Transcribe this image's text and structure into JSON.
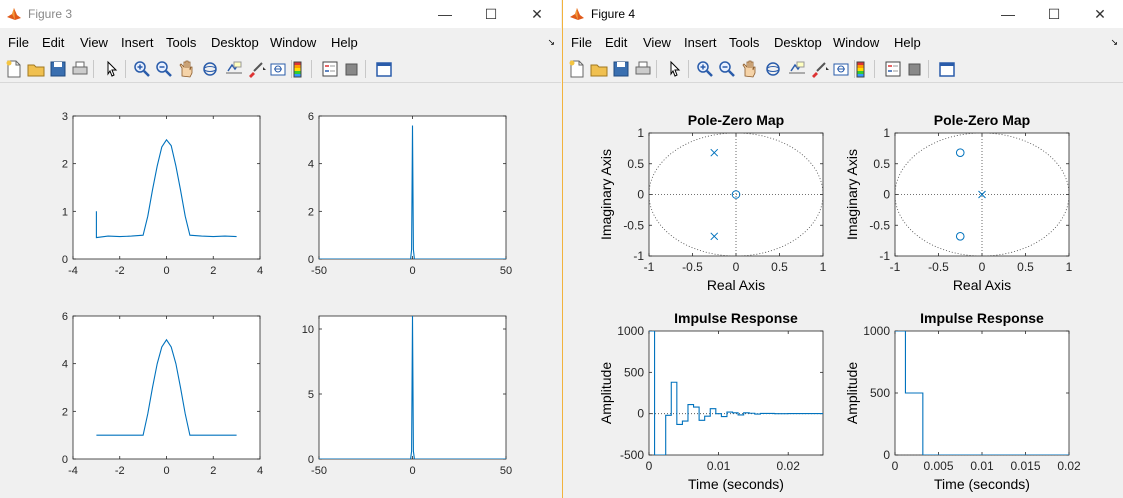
{
  "fig3": {
    "title": "Figure 3",
    "menu": [
      "File",
      "Edit",
      "View",
      "Insert",
      "Tools",
      "Desktop",
      "Window",
      "Help"
    ],
    "controls": {
      "minimize": "—",
      "maximize": "☐",
      "close": "✕"
    }
  },
  "fig4": {
    "title": "Figure 4",
    "menu": [
      "File",
      "Edit",
      "View",
      "Insert",
      "Tools",
      "Desktop",
      "Window",
      "Help"
    ],
    "controls": {
      "minimize": "—",
      "maximize": "☐",
      "close": "✕"
    }
  },
  "toolbar_icons": [
    "new-figure-icon",
    "open-icon",
    "save-icon",
    "print-icon",
    "pointer-icon",
    "zoom-in-icon",
    "zoom-out-icon",
    "pan-icon",
    "rotate-3d-icon",
    "data-cursor-icon",
    "brush-icon",
    "link-plot-icon",
    "colorbar-icon",
    "legend-icon",
    "hide-plot-tools-icon",
    "show-plot-tools-icon"
  ],
  "colors": {
    "line": "#0072bd",
    "axes": "#262626",
    "grid": "#262626",
    "accent": "#f2b33d"
  },
  "chart_data": [
    {
      "id": "fig3-top-left",
      "type": "line",
      "xlim": [
        -4,
        4
      ],
      "ylim": [
        0,
        3
      ],
      "xticks": [
        "-4",
        "-2",
        "0",
        "2",
        "4"
      ],
      "yticks": [
        "0",
        "1",
        "2",
        "3"
      ],
      "x": [
        -3,
        -3,
        -2.5,
        -2,
        -1.5,
        -1,
        -0.8,
        -0.6,
        -0.4,
        -0.2,
        0,
        0.2,
        0.4,
        0.6,
        0.8,
        1,
        1.5,
        2,
        2.5,
        3
      ],
      "y": [
        1.0,
        0.45,
        0.48,
        0.47,
        0.48,
        0.5,
        0.9,
        1.45,
        1.95,
        2.35,
        2.5,
        2.38,
        1.95,
        1.45,
        0.9,
        0.5,
        0.48,
        0.47,
        0.48,
        0.47
      ]
    },
    {
      "id": "fig3-top-right",
      "type": "line",
      "xlim": [
        -50,
        50
      ],
      "ylim": [
        0,
        6
      ],
      "xticks": [
        "-50",
        "0",
        "50"
      ],
      "yticks": [
        "0",
        "2",
        "4",
        "6"
      ],
      "x": [
        -50,
        -1,
        -0.5,
        0,
        0.5,
        1,
        50
      ],
      "y": [
        0,
        0,
        0.4,
        5.6,
        0.4,
        0,
        0
      ]
    },
    {
      "id": "fig3-bottom-left",
      "type": "line",
      "xlim": [
        -4,
        4
      ],
      "ylim": [
        0,
        6
      ],
      "xticks": [
        "-4",
        "-2",
        "0",
        "2",
        "4"
      ],
      "yticks": [
        "0",
        "2",
        "4",
        "6"
      ],
      "x": [
        -3,
        -2,
        -1,
        -0.8,
        -0.6,
        -0.4,
        -0.2,
        0,
        0.2,
        0.4,
        0.6,
        0.8,
        1,
        2,
        3
      ],
      "y": [
        1,
        1,
        1,
        1.9,
        3.0,
        4.0,
        4.7,
        5.0,
        4.7,
        4.0,
        3.0,
        1.9,
        1,
        1,
        1
      ]
    },
    {
      "id": "fig3-bottom-right",
      "type": "line",
      "xlim": [
        -50,
        50
      ],
      "ylim": [
        0,
        11
      ],
      "xticks": [
        "-50",
        "0",
        "50"
      ],
      "yticks": [
        "0",
        "5",
        "10"
      ],
      "x": [
        -50,
        -1,
        -0.5,
        0,
        0.5,
        1,
        50
      ],
      "y": [
        0,
        0,
        0.6,
        11,
        0.6,
        0,
        0
      ]
    },
    {
      "id": "fig4-pz-1",
      "type": "scatter",
      "title": "Pole-Zero Map",
      "xlabel": "Real Axis",
      "ylabel": "Imaginary Axis",
      "xlim": [
        -1,
        1
      ],
      "ylim": [
        -1,
        1
      ],
      "xticks": [
        "-1",
        "-0.5",
        "0",
        "0.5",
        "1"
      ],
      "yticks": [
        "-1",
        "-0.5",
        "0",
        "0.5",
        "1"
      ],
      "poles": [
        [
          -0.25,
          0.68
        ],
        [
          -0.25,
          -0.68
        ]
      ],
      "zeros": [
        [
          0,
          0
        ]
      ]
    },
    {
      "id": "fig4-pz-2",
      "type": "scatter",
      "title": "Pole-Zero Map",
      "xlabel": "Real Axis",
      "ylabel": "Imaginary Axis",
      "xlim": [
        -1,
        1
      ],
      "ylim": [
        -1,
        1
      ],
      "xticks": [
        "-1",
        "-0.5",
        "0",
        "0.5",
        "1"
      ],
      "yticks": [
        "-1",
        "-0.5",
        "0",
        "0.5",
        "1"
      ],
      "poles": [
        [
          0,
          0
        ]
      ],
      "zeros": [
        [
          -0.25,
          0.68
        ],
        [
          -0.25,
          -0.68
        ]
      ]
    },
    {
      "id": "fig4-imp-1",
      "type": "line",
      "title": "Impulse Response",
      "xlabel": "Time (seconds)",
      "ylabel": "Amplitude",
      "xlim": [
        0,
        0.025
      ],
      "ylim": [
        -500,
        1000
      ],
      "xticks": [
        "0",
        "0.01",
        "0.02"
      ],
      "yticks": [
        "-500",
        "0",
        "500",
        "1000"
      ],
      "x": [
        0,
        0.0008,
        0.0016,
        0.0024,
        0.0032,
        0.004,
        0.0048,
        0.0056,
        0.0064,
        0.0072,
        0.008,
        0.0088,
        0.0096,
        0.0104,
        0.0112,
        0.012,
        0.0128,
        0.0136,
        0.0144,
        0.0152,
        0.016,
        0.018,
        0.02,
        0.025
      ],
      "y": [
        1000,
        -500,
        -500,
        -20,
        380,
        -130,
        -90,
        110,
        80,
        -80,
        -30,
        60,
        0,
        -35,
        20,
        10,
        -15,
        10,
        5,
        -5,
        3,
        0,
        1,
        0
      ]
    },
    {
      "id": "fig4-imp-2",
      "type": "line",
      "title": "Impulse Response",
      "xlabel": "Time (seconds)",
      "ylabel": "Amplitude",
      "xlim": [
        0,
        0.02
      ],
      "ylim": [
        0,
        1000
      ],
      "xticks": [
        "0",
        "0.005",
        "0.01",
        "0.015",
        "0.02"
      ],
      "yticks": [
        "0",
        "500",
        "1000"
      ],
      "x": [
        0,
        0.0012,
        0.0032,
        0.02
      ],
      "y": [
        1000,
        500,
        0,
        0
      ]
    }
  ]
}
